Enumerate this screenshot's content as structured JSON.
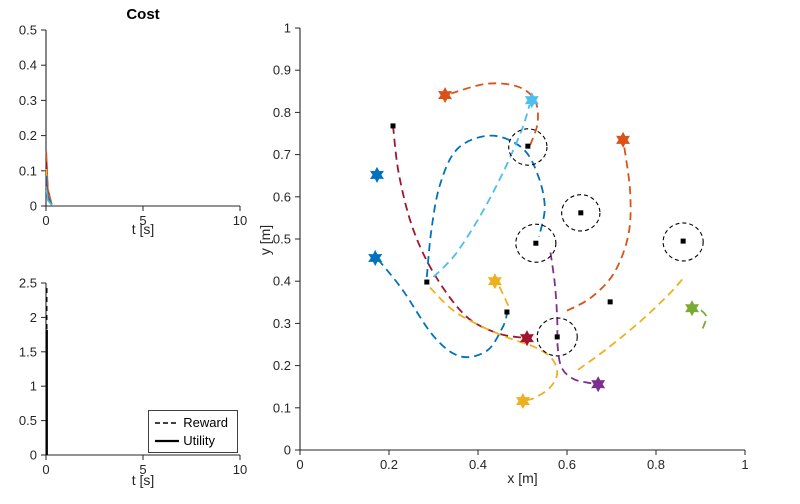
{
  "figure": {
    "background": "#ffffff",
    "axis_color": "#262626",
    "palette": {
      "blue": "#0072BD",
      "orange": "#D95319",
      "yellow": "#EDB120",
      "purple": "#7E2F8E",
      "green": "#77AC30",
      "cyan": "#4DBEEE",
      "maroon": "#A2142F"
    }
  },
  "chart_data": [
    {
      "id": "cost",
      "type": "line",
      "title": "Cost",
      "xlabel": "t [s]",
      "xlim": [
        0,
        10
      ],
      "ylim": [
        0,
        0.5
      ],
      "xticks": [
        0,
        5,
        10
      ],
      "yticks": [
        0,
        0.1,
        0.2,
        0.3,
        0.4,
        0.5
      ],
      "grid": false,
      "series": [
        {
          "name": "cost-orange",
          "color": "#D95319",
          "style": "solid",
          "x": [
            0.02,
            0.1,
            0.3
          ],
          "y": [
            0.155,
            0.05,
            0.005
          ]
        },
        {
          "name": "cost-maroon",
          "color": "#A2142F",
          "style": "solid",
          "x": [
            0.02,
            0.1,
            0.3
          ],
          "y": [
            0.125,
            0.04,
            0.005
          ]
        },
        {
          "name": "cost-yellow",
          "color": "#EDB120",
          "style": "solid",
          "x": [
            0.02,
            0.1,
            0.3
          ],
          "y": [
            0.105,
            0.035,
            0.005
          ]
        },
        {
          "name": "cost-blue",
          "color": "#0072BD",
          "style": "solid",
          "x": [
            0.02,
            0.1,
            0.3
          ],
          "y": [
            0.085,
            0.03,
            0.004
          ]
        },
        {
          "name": "cost-purple",
          "color": "#7E2F8E",
          "style": "solid",
          "x": [
            0.02,
            0.1,
            0.3
          ],
          "y": [
            0.07,
            0.022,
            0.003
          ]
        },
        {
          "name": "cost-green",
          "color": "#77AC30",
          "style": "solid",
          "x": [
            0.02,
            0.1,
            0.3
          ],
          "y": [
            0.055,
            0.018,
            0.003
          ]
        },
        {
          "name": "cost-cyan",
          "color": "#4DBEEE",
          "style": "solid",
          "x": [
            0.02,
            0.1,
            0.3
          ],
          "y": [
            0.045,
            0.015,
            0.002
          ]
        }
      ]
    },
    {
      "id": "reward_utility",
      "type": "line",
      "xlabel": "t [s]",
      "xlim": [
        0,
        10
      ],
      "ylim": [
        0,
        2.5
      ],
      "xticks": [
        0,
        5,
        10
      ],
      "yticks": [
        0,
        0.5,
        1,
        1.5,
        2,
        2.5
      ],
      "grid": false,
      "legend": [
        {
          "label": "Reward",
          "style": "dashed"
        },
        {
          "label": "Utility",
          "style": "solid"
        }
      ],
      "series": [
        {
          "name": "Reward",
          "color": "#000000",
          "style": "dashed",
          "width": 1.4,
          "x": [
            0.04,
            0.04
          ],
          "y": [
            0,
            2.45
          ]
        },
        {
          "name": "Utility",
          "color": "#000000",
          "style": "solid",
          "width": 2.2,
          "x": [
            0.04,
            0.04
          ],
          "y": [
            0,
            1.82
          ]
        }
      ]
    },
    {
      "id": "trajectories",
      "type": "scatter",
      "xlabel": "x [m]",
      "ylabel": "y [m]",
      "xlim": [
        0,
        1
      ],
      "ylim": [
        0,
        1
      ],
      "xticks": [
        0,
        0.2,
        0.4,
        0.6,
        0.8,
        1
      ],
      "yticks": [
        0,
        0.1,
        0.2,
        0.3,
        0.4,
        0.5,
        0.6,
        0.7,
        0.8,
        0.9,
        1
      ],
      "grid": false,
      "trajectories": [
        {
          "name": "agent-maroon",
          "color": "#A2142F",
          "points": [
            [
              0.209,
              0.768
            ],
            [
              0.222,
              0.655
            ],
            [
              0.252,
              0.53
            ],
            [
              0.3,
              0.42
            ],
            [
              0.37,
              0.32
            ],
            [
              0.44,
              0.278
            ],
            [
              0.5,
              0.266
            ]
          ]
        },
        {
          "name": "agent-blue-loop",
          "color": "#0072BD",
          "points": [
            [
              0.285,
              0.41
            ],
            [
              0.295,
              0.52
            ],
            [
              0.315,
              0.63
            ],
            [
              0.355,
              0.715
            ],
            [
              0.43,
              0.745
            ],
            [
              0.5,
              0.715
            ],
            [
              0.535,
              0.65
            ],
            [
              0.55,
              0.575
            ],
            [
              0.537,
              0.505
            ]
          ]
        },
        {
          "name": "agent-blue-low",
          "color": "#0072BD",
          "points": [
            [
              0.175,
              0.452
            ],
            [
              0.23,
              0.38
            ],
            [
              0.3,
              0.27
            ],
            [
              0.36,
              0.222
            ],
            [
              0.42,
              0.235
            ],
            [
              0.455,
              0.29
            ],
            [
              0.465,
              0.322
            ]
          ]
        },
        {
          "name": "agent-cyan",
          "color": "#4DBEEE",
          "points": [
            [
              0.3,
              0.41
            ],
            [
              0.35,
              0.465
            ],
            [
              0.405,
              0.555
            ],
            [
              0.455,
              0.655
            ],
            [
              0.497,
              0.755
            ],
            [
              0.516,
              0.818
            ]
          ]
        },
        {
          "name": "agent-orange-top",
          "color": "#D95319",
          "points": [
            [
              0.517,
              0.722
            ],
            [
              0.534,
              0.775
            ],
            [
              0.528,
              0.828
            ],
            [
              0.49,
              0.861
            ],
            [
              0.42,
              0.868
            ],
            [
              0.34,
              0.845
            ]
          ]
        },
        {
          "name": "agent-orange-right",
          "color": "#D95319",
          "points": [
            [
              0.6,
              0.33
            ],
            [
              0.655,
              0.362
            ],
            [
              0.706,
              0.42
            ],
            [
              0.738,
              0.51
            ],
            [
              0.742,
              0.61
            ],
            [
              0.728,
              0.723
            ]
          ]
        },
        {
          "name": "agent-purple",
          "color": "#7E2F8E",
          "points": [
            [
              0.563,
              0.468
            ],
            [
              0.573,
              0.39
            ],
            [
              0.578,
              0.31
            ],
            [
              0.579,
              0.245
            ],
            [
              0.588,
              0.195
            ],
            [
              0.615,
              0.168
            ],
            [
              0.655,
              0.158
            ]
          ]
        },
        {
          "name": "agent-yellow-long",
          "color": "#EDB120",
          "points": [
            [
              0.292,
              0.385
            ],
            [
              0.345,
              0.33
            ],
            [
              0.41,
              0.292
            ],
            [
              0.47,
              0.265
            ],
            [
              0.525,
              0.245
            ],
            [
              0.565,
              0.218
            ],
            [
              0.578,
              0.182
            ],
            [
              0.562,
              0.148
            ],
            [
              0.528,
              0.124
            ],
            [
              0.508,
              0.118
            ]
          ]
        },
        {
          "name": "agent-yellow-arc",
          "color": "#EDB120",
          "points": [
            [
              0.625,
              0.19
            ],
            [
              0.69,
              0.24
            ],
            [
              0.765,
              0.305
            ],
            [
              0.83,
              0.37
            ],
            [
              0.862,
              0.408
            ]
          ]
        },
        {
          "name": "agent-yellow-short",
          "color": "#EDB120",
          "points": [
            [
              0.468,
              0.342
            ],
            [
              0.455,
              0.372
            ],
            [
              0.444,
              0.396
            ]
          ]
        },
        {
          "name": "agent-green",
          "color": "#77AC30",
          "points": [
            [
              0.905,
              0.288
            ],
            [
              0.913,
              0.315
            ],
            [
              0.901,
              0.331
            ],
            [
              0.886,
              0.335
            ]
          ]
        }
      ],
      "stars": [
        {
          "x": 0.326,
          "y": 0.841,
          "color": "#D95319"
        },
        {
          "x": 0.521,
          "y": 0.829,
          "color": "#4DBEEE"
        },
        {
          "x": 0.726,
          "y": 0.735,
          "color": "#D95319"
        },
        {
          "x": 0.173,
          "y": 0.652,
          "color": "#0072BD"
        },
        {
          "x": 0.169,
          "y": 0.455,
          "color": "#0072BD"
        },
        {
          "x": 0.438,
          "y": 0.4,
          "color": "#EDB120"
        },
        {
          "x": 0.51,
          "y": 0.265,
          "color": "#A2142F"
        },
        {
          "x": 0.501,
          "y": 0.116,
          "color": "#EDB120"
        },
        {
          "x": 0.67,
          "y": 0.156,
          "color": "#7E2F8E"
        },
        {
          "x": 0.881,
          "y": 0.336,
          "color": "#77AC30"
        }
      ],
      "squares": [
        [
          0.209,
          0.768
        ],
        [
          0.512,
          0.72
        ],
        [
          0.631,
          0.562
        ],
        [
          0.53,
          0.49
        ],
        [
          0.861,
          0.495
        ],
        [
          0.285,
          0.398
        ],
        [
          0.465,
          0.327
        ],
        [
          0.578,
          0.268
        ],
        [
          0.697,
          0.351
        ]
      ],
      "circles": [
        {
          "x": 0.512,
          "y": 0.718,
          "r": 0.043
        },
        {
          "x": 0.631,
          "y": 0.562,
          "r": 0.043
        },
        {
          "x": 0.53,
          "y": 0.49,
          "r": 0.045
        },
        {
          "x": 0.861,
          "y": 0.493,
          "r": 0.045
        },
        {
          "x": 0.578,
          "y": 0.268,
          "r": 0.045
        }
      ]
    }
  ]
}
